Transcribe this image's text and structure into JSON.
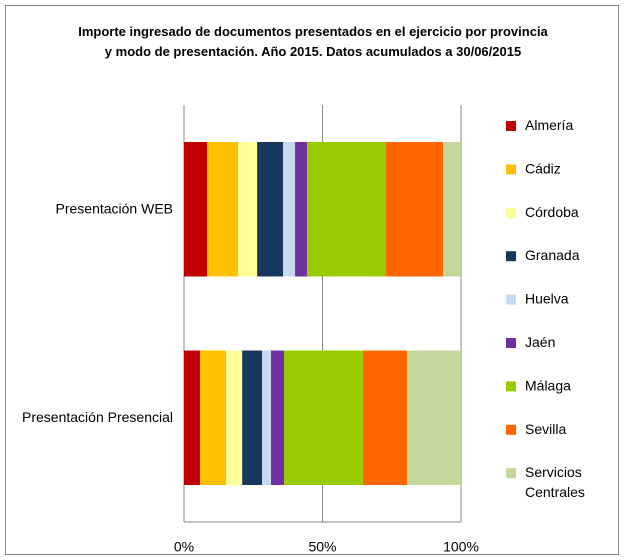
{
  "chart_data": {
    "type": "stacked-barh",
    "title": "Importe ingresado de documentos presentados en el ejercicio por provincia y modo de presentación. Año 2015. Datos acumulados a 30/06/2015",
    "categories": [
      "Presentación WEB",
      "Presentación Presencial"
    ],
    "series": [
      {
        "name": "Almería",
        "color": "#c00000",
        "values": [
          8.3,
          5.8
        ]
      },
      {
        "name": "Cádiz",
        "color": "#ffc000",
        "values": [
          11.2,
          9.4
        ]
      },
      {
        "name": "Córdoba",
        "color": "#ffff99",
        "values": [
          6.9,
          5.8
        ]
      },
      {
        "name": "Granada",
        "color": "#17375e",
        "values": [
          9.4,
          7.2
        ]
      },
      {
        "name": "Huelva",
        "color": "#c6d9f1",
        "values": [
          4.3,
          3.2
        ]
      },
      {
        "name": "Jaén",
        "color": "#7030a0",
        "values": [
          4.3,
          4.7
        ]
      },
      {
        "name": "Málaga",
        "color": "#99cc00",
        "values": [
          28.5,
          28.5
        ]
      },
      {
        "name": "Sevilla",
        "color": "#ff6600",
        "values": [
          20.6,
          15.9
        ]
      },
      {
        "name": "Servicios Centrales",
        "color": "#c4d79b",
        "values": [
          6.5,
          19.5
        ]
      }
    ],
    "xlim": [
      0,
      100
    ],
    "xticks": [
      {
        "value": 0,
        "label": "0%"
      },
      {
        "value": 50,
        "label": "50%"
      },
      {
        "value": 100,
        "label": "100%"
      }
    ],
    "grid": true,
    "legend": "right"
  }
}
